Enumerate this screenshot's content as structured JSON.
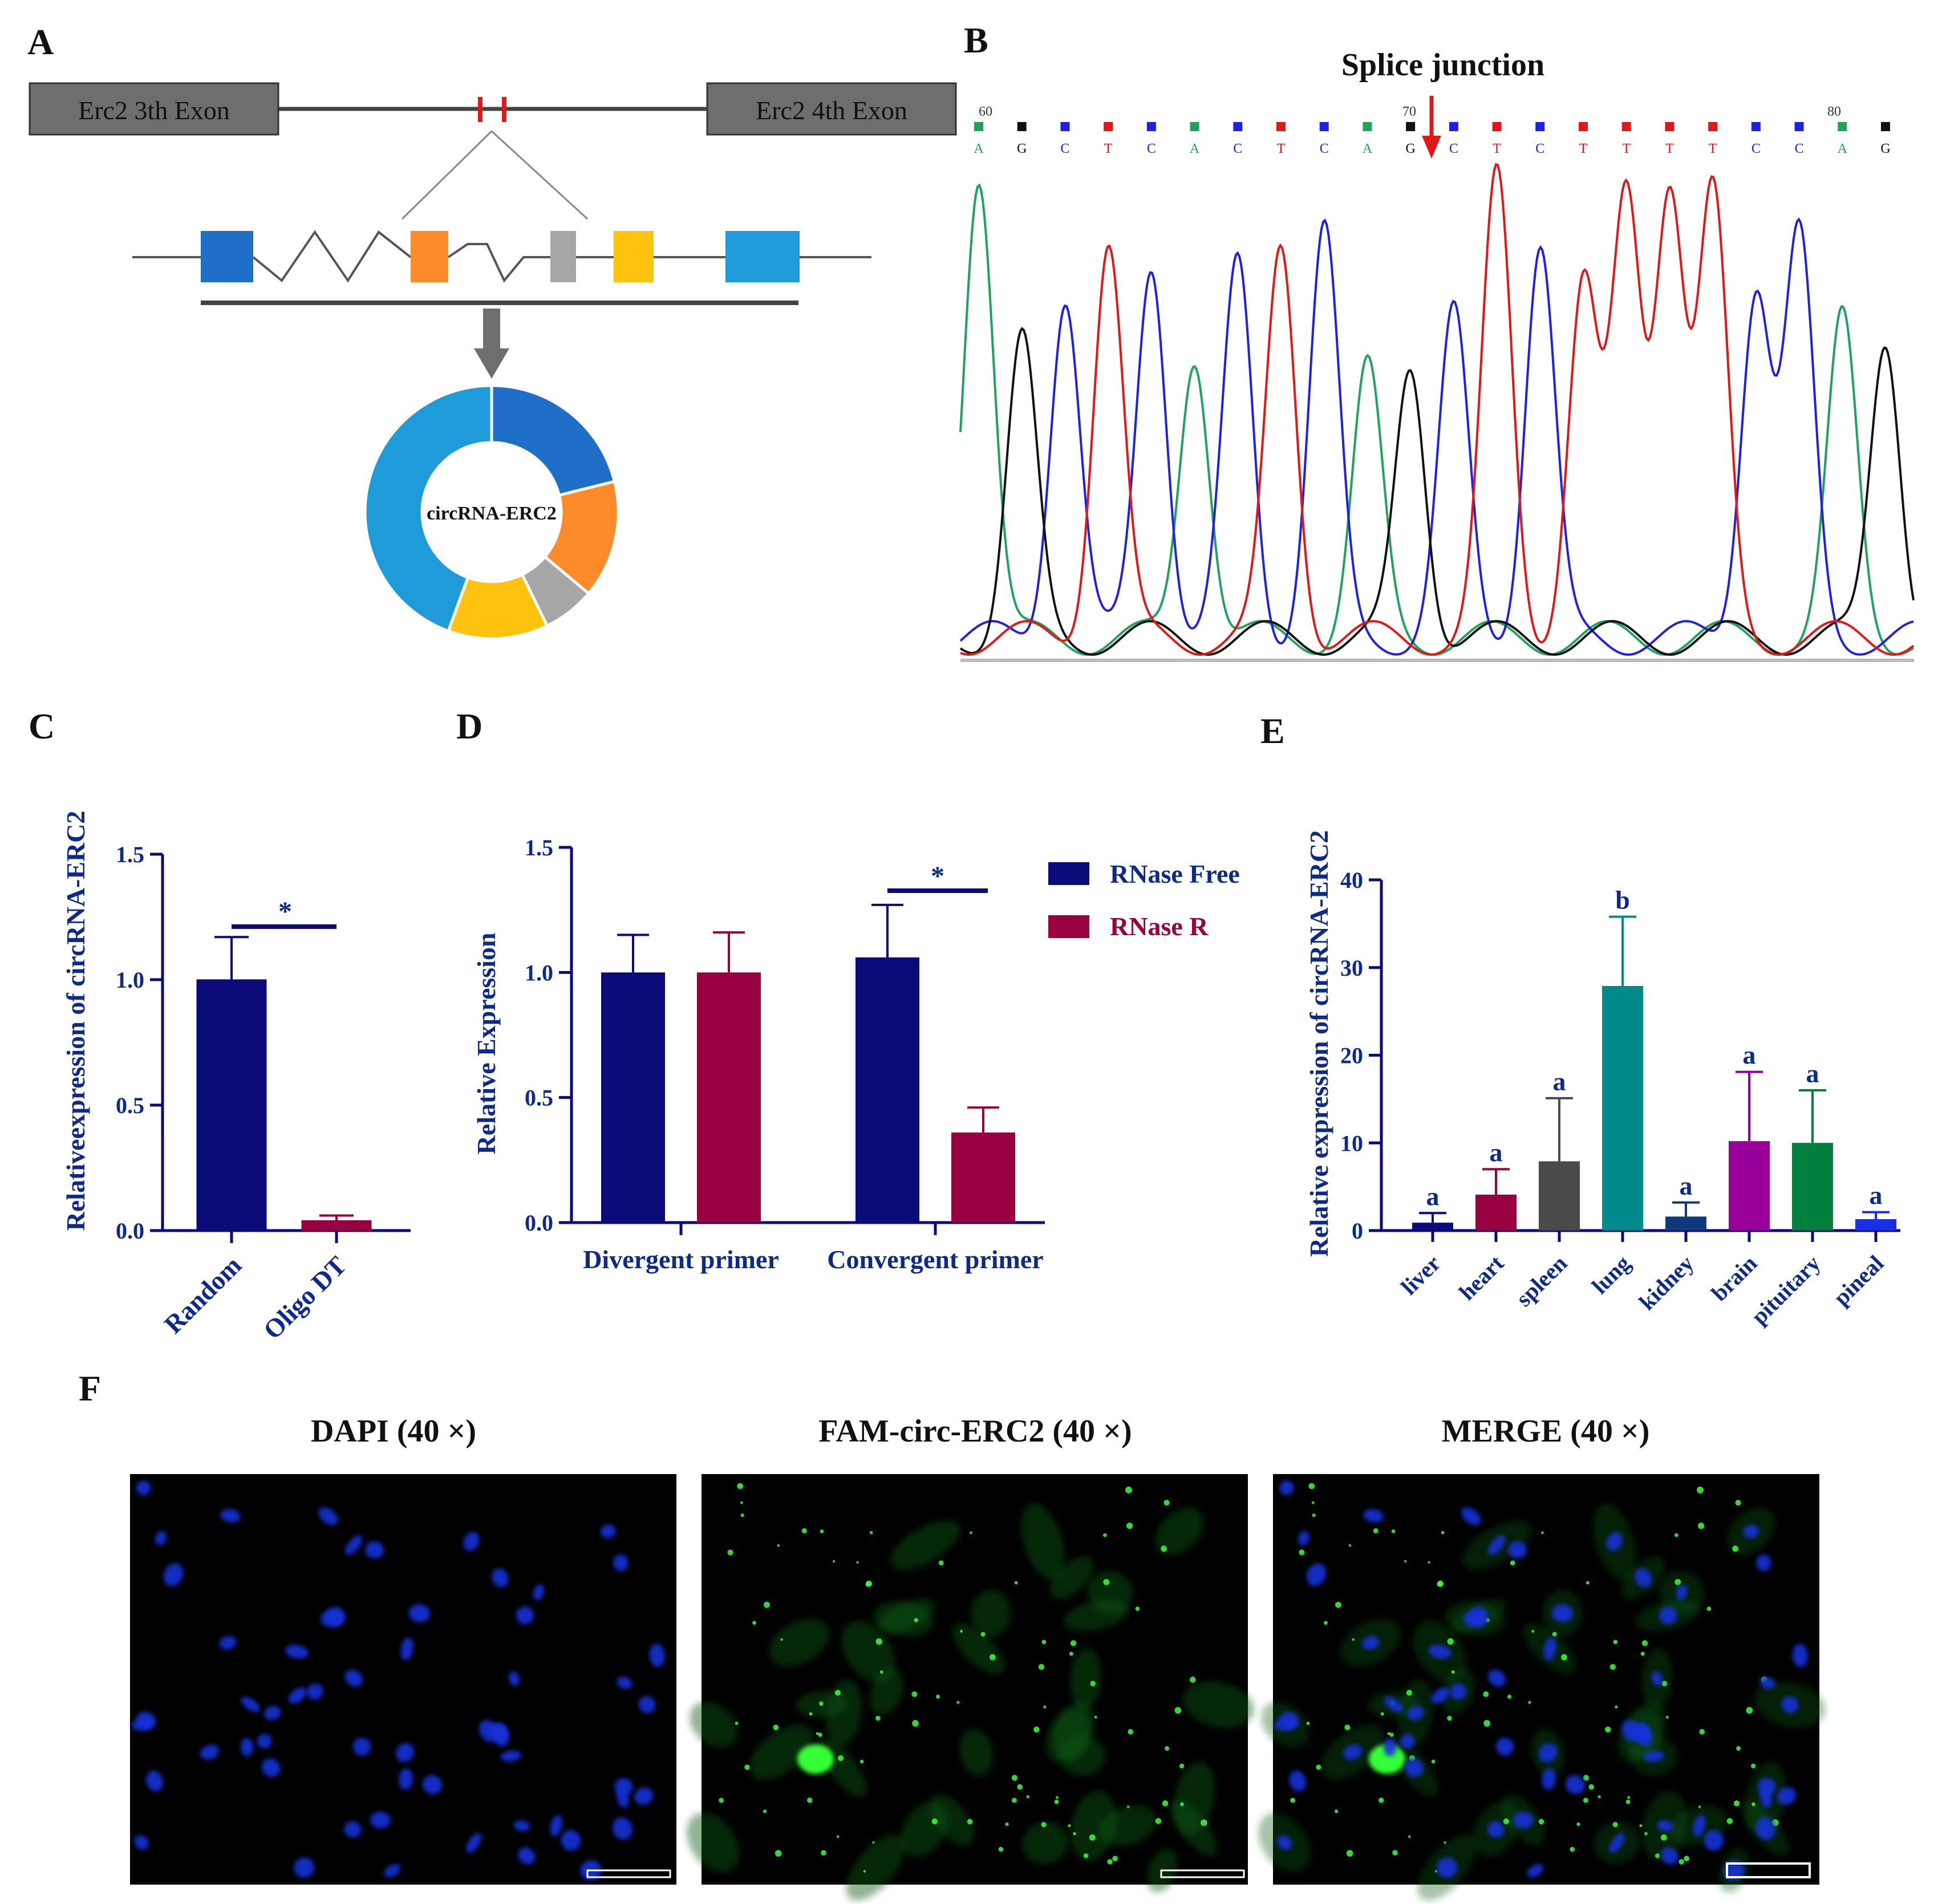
{
  "colors": {
    "navy": "#0a0a78",
    "maroon": "#990041",
    "axis_text": "#0d2a8a",
    "exon_box": "#6e6e6e",
    "trace_A": "#1fa35c",
    "trace_C": "#2020e0",
    "trace_G": "#111111",
    "trace_T": "#e01818"
  },
  "panel_labels": {
    "A": "A",
    "B": "B",
    "C": "C",
    "D": "D",
    "E": "E",
    "F": "F"
  },
  "panel_a": {
    "exon_left": "Erc2 3th Exon",
    "exon_right": "Erc2 4th Exon",
    "circle_label": "circRNA-ERC2",
    "segment_colors": [
      "#1f6fc8",
      "#ff8a2a",
      "#a6a6a6",
      "#ffc20e",
      "#1e9bd8"
    ]
  },
  "panel_b": {
    "title": "Splice junction",
    "position_labels": [
      "60",
      "70",
      "80"
    ],
    "bases": [
      "A",
      "G",
      "C",
      "T",
      "C",
      "A",
      "C",
      "T",
      "C",
      "A",
      "G",
      "C",
      "T",
      "C",
      "T",
      "T",
      "T",
      "T",
      "C",
      "C",
      "A",
      "G"
    ]
  },
  "panel_c": {
    "ylabel": "Relativeexpression of circRNA-ERC2",
    "significance": "*",
    "tick_labels": [
      "0.0",
      "0.5",
      "1.0",
      "1.5"
    ]
  },
  "panel_d": {
    "ylabel": "Relative Expression",
    "significance": "*",
    "tick_labels": [
      "0.0",
      "0.5",
      "1.0",
      "1.5"
    ],
    "legend": [
      "RNase Free",
      "RNase R"
    ]
  },
  "panel_e": {
    "ylabel": "Relative expression of circRNA-ERC2",
    "tick_labels": [
      "0",
      "10",
      "20",
      "30",
      "40"
    ],
    "significance_letters": [
      "a",
      "a",
      "a",
      "b",
      "a",
      "a",
      "a",
      "a"
    ]
  },
  "panel_f": {
    "titles": [
      "DAPI (40 ×)",
      "FAM-circ-ERC2 (40 ×)",
      "MERGE (40 ×)"
    ]
  },
  "chart_data": [
    {
      "panel": "C",
      "type": "bar",
      "title": "",
      "xlabel": "",
      "ylabel": "Relativeexpression of circRNA-ERC2",
      "categories": [
        "Random",
        "Oligo DT"
      ],
      "values": [
        1.0,
        0.04
      ],
      "errors": [
        0.17,
        0.02
      ],
      "ylim": [
        0,
        1.5
      ],
      "yticks": [
        0,
        0.5,
        1.0,
        1.5
      ]
    },
    {
      "panel": "D",
      "type": "bar",
      "title": "",
      "xlabel": "",
      "ylabel": "Relative Expression",
      "categories": [
        "Divergent primer",
        "Convergent primer"
      ],
      "series": [
        {
          "name": "RNase Free",
          "values": [
            1.0,
            1.06
          ],
          "errors": [
            0.15,
            0.21
          ]
        },
        {
          "name": "RNase R",
          "values": [
            1.0,
            0.36
          ],
          "errors": [
            0.16,
            0.1
          ]
        }
      ],
      "ylim": [
        0,
        1.5
      ],
      "yticks": [
        0,
        0.5,
        1.0,
        1.5
      ]
    },
    {
      "panel": "E",
      "type": "bar",
      "title": "",
      "xlabel": "",
      "ylabel": "Relative expression of circRNA-ERC2",
      "categories": [
        "liver",
        "heart",
        "spleen",
        "lung",
        "kidney",
        "brain",
        "pituitary",
        "pineal"
      ],
      "values": [
        0.9,
        4.1,
        7.9,
        27.9,
        1.6,
        10.2,
        10.0,
        1.3
      ],
      "errors": [
        1.1,
        2.9,
        7.2,
        7.9,
        1.6,
        7.9,
        6.0,
        0.8
      ],
      "ylim": [
        0,
        40
      ],
      "yticks": [
        0,
        10,
        20,
        30,
        40
      ]
    }
  ]
}
